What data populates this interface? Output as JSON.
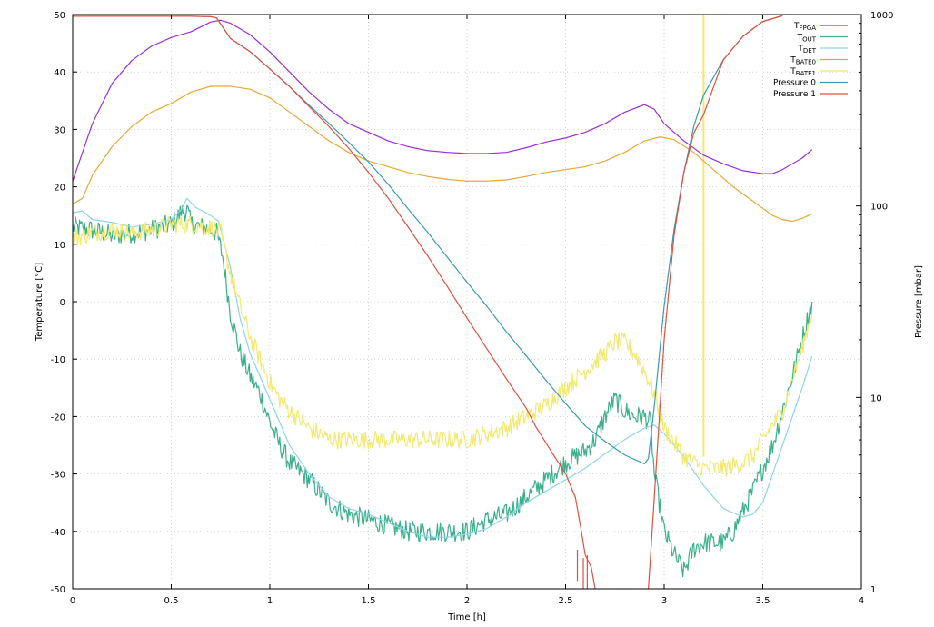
{
  "chart_data": {
    "type": "line",
    "xlabel": "Time [h]",
    "ylabel": "Temperature [°C]",
    "y2label": "Pressure [mbar]",
    "xlim": [
      0,
      4
    ],
    "ylim": [
      -50,
      50
    ],
    "y2lim": [
      1,
      1000
    ],
    "y2scale": "log",
    "grid": true,
    "legend_position": "top-right",
    "x_ticks": [
      "0",
      "0.5",
      "1",
      "1.5",
      "2",
      "2.5",
      "3",
      "3.5",
      "4"
    ],
    "y_ticks": [
      "-50",
      "-40",
      "-30",
      "-20",
      "-10",
      "0",
      "10",
      "20",
      "30",
      "40",
      "50"
    ],
    "y2_ticks": [
      "1",
      "10",
      "100",
      "1000"
    ],
    "series": [
      {
        "name": "T",
        "sub": "FPGA",
        "axis": "left",
        "color": "#9b30d0",
        "noise": 0,
        "points": [
          [
            0,
            21
          ],
          [
            0.1,
            31
          ],
          [
            0.2,
            38
          ],
          [
            0.3,
            42
          ],
          [
            0.4,
            44.5
          ],
          [
            0.5,
            46
          ],
          [
            0.6,
            47
          ],
          [
            0.7,
            48.7
          ],
          [
            0.75,
            49
          ],
          [
            0.8,
            48.5
          ],
          [
            0.9,
            46.5
          ],
          [
            1.0,
            43.5
          ],
          [
            1.1,
            40
          ],
          [
            1.2,
            36.5
          ],
          [
            1.3,
            33.5
          ],
          [
            1.4,
            31
          ],
          [
            1.5,
            29.5
          ],
          [
            1.6,
            28
          ],
          [
            1.7,
            27
          ],
          [
            1.8,
            26.3
          ],
          [
            1.9,
            26
          ],
          [
            2.0,
            25.8
          ],
          [
            2.1,
            25.8
          ],
          [
            2.2,
            26
          ],
          [
            2.3,
            26.8
          ],
          [
            2.4,
            27.8
          ],
          [
            2.5,
            28.5
          ],
          [
            2.6,
            29.5
          ],
          [
            2.7,
            31
          ],
          [
            2.8,
            33
          ],
          [
            2.9,
            34.3
          ],
          [
            2.95,
            33.5
          ],
          [
            3.0,
            31
          ],
          [
            3.1,
            28
          ],
          [
            3.2,
            25.5
          ],
          [
            3.3,
            24
          ],
          [
            3.4,
            22.8
          ],
          [
            3.5,
            22.3
          ],
          [
            3.55,
            22.3
          ],
          [
            3.6,
            23
          ],
          [
            3.7,
            25
          ],
          [
            3.75,
            26.5
          ]
        ]
      },
      {
        "name": "T",
        "sub": "OUT",
        "axis": "left",
        "color": "#3cb08c",
        "noise": 1.8,
        "points": [
          [
            0,
            13
          ],
          [
            0.1,
            12.5
          ],
          [
            0.2,
            11.5
          ],
          [
            0.3,
            12
          ],
          [
            0.4,
            12.5
          ],
          [
            0.5,
            13.5
          ],
          [
            0.55,
            15.5
          ],
          [
            0.58,
            16
          ],
          [
            0.6,
            13.5
          ],
          [
            0.7,
            12.5
          ],
          [
            0.73,
            12
          ],
          [
            0.76,
            8
          ],
          [
            0.8,
            -2
          ],
          [
            0.85,
            -9
          ],
          [
            0.9,
            -13
          ],
          [
            0.95,
            -16
          ],
          [
            1.0,
            -21
          ],
          [
            1.05,
            -25
          ],
          [
            1.1,
            -28
          ],
          [
            1.2,
            -31
          ],
          [
            1.3,
            -35
          ],
          [
            1.4,
            -37
          ],
          [
            1.5,
            -38
          ],
          [
            1.6,
            -39
          ],
          [
            1.7,
            -40
          ],
          [
            1.8,
            -40
          ],
          [
            1.9,
            -40
          ],
          [
            2.0,
            -40
          ],
          [
            2.1,
            -38
          ],
          [
            2.2,
            -37
          ],
          [
            2.3,
            -34
          ],
          [
            2.4,
            -31
          ],
          [
            2.5,
            -28
          ],
          [
            2.6,
            -26
          ],
          [
            2.65,
            -24
          ],
          [
            2.7,
            -20
          ],
          [
            2.75,
            -17
          ],
          [
            2.8,
            -19
          ],
          [
            2.85,
            -20
          ],
          [
            2.9,
            -20
          ],
          [
            2.93,
            -21
          ],
          [
            2.95,
            -30
          ],
          [
            3.0,
            -40
          ],
          [
            3.05,
            -44
          ],
          [
            3.1,
            -47
          ],
          [
            3.15,
            -43
          ],
          [
            3.2,
            -42
          ],
          [
            3.3,
            -42
          ],
          [
            3.35,
            -40
          ],
          [
            3.45,
            -33
          ],
          [
            3.55,
            -25
          ],
          [
            3.65,
            -13
          ],
          [
            3.75,
            0
          ]
        ]
      },
      {
        "name": "T",
        "sub": "DET",
        "axis": "left",
        "color": "#8dd4ee",
        "noise": 0,
        "points": [
          [
            0,
            15.5
          ],
          [
            0.05,
            15.8
          ],
          [
            0.1,
            14.3
          ],
          [
            0.2,
            13.8
          ],
          [
            0.3,
            13
          ],
          [
            0.4,
            13.5
          ],
          [
            0.5,
            14.3
          ],
          [
            0.55,
            16
          ],
          [
            0.58,
            18
          ],
          [
            0.62,
            16.5
          ],
          [
            0.7,
            15
          ],
          [
            0.74,
            14
          ],
          [
            0.8,
            6
          ],
          [
            0.85,
            -3
          ],
          [
            0.9,
            -9
          ],
          [
            0.95,
            -13
          ],
          [
            1.0,
            -17
          ],
          [
            1.05,
            -21
          ],
          [
            1.1,
            -25
          ],
          [
            1.2,
            -30
          ],
          [
            1.3,
            -34
          ],
          [
            1.4,
            -36
          ],
          [
            1.5,
            -37
          ],
          [
            1.6,
            -38.5
          ],
          [
            1.7,
            -40
          ],
          [
            1.8,
            -41
          ],
          [
            1.9,
            -41
          ],
          [
            2.0,
            -40.5
          ],
          [
            2.1,
            -39.5
          ],
          [
            2.2,
            -37.5
          ],
          [
            2.3,
            -35
          ],
          [
            2.4,
            -33
          ],
          [
            2.5,
            -31
          ],
          [
            2.6,
            -29
          ],
          [
            2.7,
            -26.5
          ],
          [
            2.8,
            -24
          ],
          [
            2.9,
            -22
          ],
          [
            2.95,
            -21.5
          ],
          [
            3.0,
            -23
          ],
          [
            3.1,
            -27
          ],
          [
            3.2,
            -32
          ],
          [
            3.3,
            -36
          ],
          [
            3.4,
            -37.5
          ],
          [
            3.45,
            -37
          ],
          [
            3.5,
            -35
          ],
          [
            3.55,
            -30
          ],
          [
            3.6,
            -25
          ],
          [
            3.7,
            -15
          ],
          [
            3.75,
            -9.5
          ]
        ]
      },
      {
        "name": "T",
        "sub": "BATE0",
        "axis": "left",
        "color": "#e8a838",
        "noise": 0,
        "points": [
          [
            0,
            17
          ],
          [
            0.05,
            18
          ],
          [
            0.1,
            22
          ],
          [
            0.2,
            27
          ],
          [
            0.3,
            30.5
          ],
          [
            0.4,
            33
          ],
          [
            0.5,
            34.5
          ],
          [
            0.6,
            36.5
          ],
          [
            0.7,
            37.5
          ],
          [
            0.8,
            37.5
          ],
          [
            0.9,
            37
          ],
          [
            1.0,
            35.5
          ],
          [
            1.1,
            33
          ],
          [
            1.2,
            30.5
          ],
          [
            1.3,
            28
          ],
          [
            1.4,
            26
          ],
          [
            1.5,
            24.5
          ],
          [
            1.6,
            23.5
          ],
          [
            1.7,
            22.5
          ],
          [
            1.8,
            21.8
          ],
          [
            1.9,
            21.3
          ],
          [
            2.0,
            21
          ],
          [
            2.1,
            21
          ],
          [
            2.2,
            21.2
          ],
          [
            2.3,
            21.8
          ],
          [
            2.4,
            22.5
          ],
          [
            2.5,
            23
          ],
          [
            2.6,
            23.5
          ],
          [
            2.7,
            24.5
          ],
          [
            2.8,
            26
          ],
          [
            2.9,
            28
          ],
          [
            2.98,
            28.7
          ],
          [
            3.05,
            28.2
          ],
          [
            3.15,
            26
          ],
          [
            3.25,
            23
          ],
          [
            3.35,
            20
          ],
          [
            3.45,
            17.5
          ],
          [
            3.55,
            15
          ],
          [
            3.6,
            14.3
          ],
          [
            3.65,
            14
          ],
          [
            3.7,
            14.5
          ],
          [
            3.75,
            15.3
          ]
        ]
      },
      {
        "name": "T",
        "sub": "BATE1",
        "axis": "left",
        "color": "#f2ea70",
        "noise": 1.6,
        "points": [
          [
            0,
            11
          ],
          [
            0.1,
            12
          ],
          [
            0.2,
            12.5
          ],
          [
            0.3,
            12
          ],
          [
            0.4,
            12.5
          ],
          [
            0.5,
            13.5
          ],
          [
            0.6,
            13.5
          ],
          [
            0.7,
            13
          ],
          [
            0.75,
            12
          ],
          [
            0.8,
            5
          ],
          [
            0.85,
            -1
          ],
          [
            0.9,
            -6
          ],
          [
            0.95,
            -10
          ],
          [
            1.0,
            -14
          ],
          [
            1.05,
            -17
          ],
          [
            1.1,
            -19
          ],
          [
            1.2,
            -22
          ],
          [
            1.3,
            -24
          ],
          [
            1.5,
            -24
          ],
          [
            1.7,
            -24
          ],
          [
            1.9,
            -24
          ],
          [
            2.0,
            -24
          ],
          [
            2.1,
            -23
          ],
          [
            2.2,
            -22
          ],
          [
            2.3,
            -20
          ],
          [
            2.4,
            -18
          ],
          [
            2.5,
            -15
          ],
          [
            2.6,
            -12
          ],
          [
            2.7,
            -9
          ],
          [
            2.75,
            -7
          ],
          [
            2.8,
            -7
          ],
          [
            2.85,
            -9
          ],
          [
            2.9,
            -12
          ],
          [
            2.95,
            -16
          ],
          [
            3.0,
            -22
          ],
          [
            3.1,
            -27
          ],
          [
            3.2,
            -29
          ],
          [
            3.3,
            -29
          ],
          [
            3.4,
            -28
          ],
          [
            3.45,
            -27
          ],
          [
            3.5,
            -24
          ],
          [
            3.6,
            -19
          ],
          [
            3.7,
            -8
          ],
          [
            3.75,
            -2
          ]
        ]
      },
      {
        "name": "Pressure 0",
        "axis": "right",
        "color": "#3a9ab8",
        "noise": 0,
        "points": [
          [
            0,
            980
          ],
          [
            0.3,
            980
          ],
          [
            0.6,
            980
          ],
          [
            0.7,
            975
          ],
          [
            0.73,
            960
          ],
          [
            0.8,
            750
          ],
          [
            0.9,
            640
          ],
          [
            1.0,
            520
          ],
          [
            1.1,
            420
          ],
          [
            1.2,
            335
          ],
          [
            1.3,
            270
          ],
          [
            1.4,
            215
          ],
          [
            1.5,
            170
          ],
          [
            1.6,
            130
          ],
          [
            1.7,
            97
          ],
          [
            1.8,
            73
          ],
          [
            1.9,
            54
          ],
          [
            2.0,
            40
          ],
          [
            2.1,
            30
          ],
          [
            2.2,
            22
          ],
          [
            2.3,
            16.5
          ],
          [
            2.4,
            12.3
          ],
          [
            2.5,
            9.3
          ],
          [
            2.6,
            7.1
          ],
          [
            2.7,
            5.9
          ],
          [
            2.8,
            5
          ],
          [
            2.9,
            4.5
          ],
          [
            2.92,
            4.8
          ],
          [
            2.95,
            9
          ],
          [
            3.0,
            30
          ],
          [
            3.05,
            75
          ],
          [
            3.1,
            150
          ],
          [
            3.15,
            260
          ],
          [
            3.2,
            380
          ],
          [
            3.3,
            580
          ],
          [
            3.4,
            770
          ],
          [
            3.5,
            920
          ],
          [
            3.6,
            985
          ]
        ]
      },
      {
        "name": "Pressure 1",
        "axis": "right",
        "color": "#e05040",
        "noise": 0,
        "points": [
          [
            0,
            980
          ],
          [
            0.3,
            980
          ],
          [
            0.6,
            980
          ],
          [
            0.7,
            975
          ],
          [
            0.73,
            960
          ],
          [
            0.8,
            750
          ],
          [
            0.9,
            640
          ],
          [
            1.0,
            520
          ],
          [
            1.1,
            420
          ],
          [
            1.2,
            330
          ],
          [
            1.3,
            260
          ],
          [
            1.4,
            200
          ],
          [
            1.5,
            150
          ],
          [
            1.6,
            110
          ],
          [
            1.7,
            78
          ],
          [
            1.8,
            55
          ],
          [
            1.9,
            38
          ],
          [
            2.0,
            26
          ],
          [
            2.1,
            18
          ],
          [
            2.2,
            12.5
          ],
          [
            2.3,
            8.8
          ],
          [
            2.35,
            7
          ],
          [
            2.4,
            5.8
          ],
          [
            2.45,
            4.8
          ],
          [
            2.5,
            4
          ],
          [
            2.55,
            3
          ],
          [
            2.58,
            2
          ],
          [
            2.6,
            1.5
          ],
          [
            2.63,
            1.3
          ],
          [
            2.65,
            1
          ],
          [
            null,
            null
          ],
          [
            2.92,
            1
          ],
          [
            2.95,
            3
          ],
          [
            3.0,
            20
          ],
          [
            3.05,
            70
          ],
          [
            3.1,
            150
          ],
          [
            3.15,
            240
          ],
          [
            3.2,
            300
          ],
          [
            3.3,
            580
          ],
          [
            3.4,
            770
          ],
          [
            3.5,
            920
          ],
          [
            3.6,
            985
          ]
        ]
      }
    ],
    "annotations": [
      {
        "type": "vertical_line",
        "x": 3.2,
        "color": "#f2ea70"
      }
    ]
  }
}
